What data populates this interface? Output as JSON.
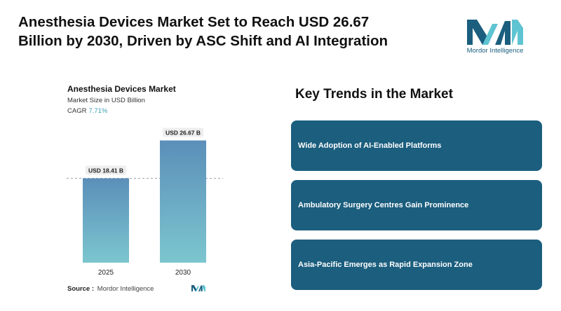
{
  "headline": {
    "line1": "Anesthesia Devices Market Set to Reach USD 26.67",
    "line2": "Billion by 2030, Driven by ASC Shift and AI Integration"
  },
  "brand": {
    "name": "Mordor Intelligence",
    "color": "#1b5e7e",
    "accent": "#5fc4d2"
  },
  "chart_data": {
    "type": "bar",
    "title": "Anesthesia Devices Market",
    "subtitle": "Market Size in USD Billion",
    "cagr_label": "CAGR",
    "cagr_value": "7.71%",
    "categories": [
      "2025",
      "2030"
    ],
    "values": [
      18.41,
      26.67
    ],
    "data_labels": [
      "USD 18.41 B",
      "USD 26.67 B"
    ],
    "ylim": [
      0,
      29.5
    ],
    "reference_line": 18.41,
    "grid": false,
    "bar_gradient": [
      "#5b8fb9",
      "#7cc6cf"
    ]
  },
  "source": {
    "label": "Source :",
    "value": "Mordor Intelligence"
  },
  "trends": {
    "title": "Key Trends in the Market",
    "items": [
      "Wide Adoption of AI-Enabled Platforms",
      "Ambulatory Surgery Centres Gain Prominence",
      "Asia-Pacific Emerges as Rapid Expansion Zone"
    ]
  }
}
